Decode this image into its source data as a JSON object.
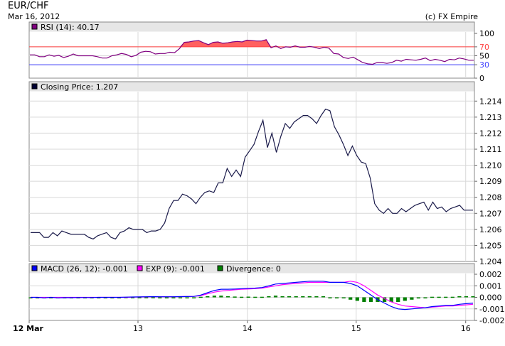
{
  "header": {
    "title": "EUR/CHF",
    "date": "Mar 16, 2012",
    "credit": "(c) FX Empire"
  },
  "colors": {
    "price_line": "#1a1a4a",
    "rsi_line": "#800080",
    "rsi_fill": "#ff6060",
    "rsi_overbought_line": "#ff4040",
    "rsi_oversold_line": "#4040ff",
    "macd_line": "#0000ff",
    "exp_line": "#ff00ff",
    "divergence_bar": "#008000",
    "panel_header": "#e6e6e6",
    "grid": "#d8d8d8"
  },
  "chart_data": [
    {
      "type": "line",
      "panel": "rsi",
      "legend": {
        "label": "RSI (14): 40.17",
        "swatch_color": "#800080"
      },
      "ylim": [
        0,
        100
      ],
      "y_ticks": [
        "100",
        "70",
        "50",
        "30",
        "0"
      ],
      "levels": {
        "overbought": 70,
        "oversold": 30
      },
      "series": [
        {
          "name": "RSI (14)",
          "values": [
            52,
            52,
            48,
            48,
            52,
            49,
            51,
            46,
            49,
            54,
            50,
            50,
            50,
            50,
            48,
            45,
            45,
            50,
            52,
            55,
            53,
            48,
            51,
            58,
            60,
            59,
            54,
            55,
            55,
            58,
            57,
            66,
            80,
            81,
            83,
            84,
            79,
            75,
            80,
            81,
            78,
            79,
            81,
            82,
            81,
            85,
            84,
            83,
            83,
            86,
            68,
            72,
            66,
            70,
            69,
            72,
            69,
            69,
            71,
            69,
            66,
            69,
            67,
            55,
            54,
            46,
            44,
            47,
            41,
            35,
            32,
            31,
            35,
            35,
            33,
            35,
            40,
            38,
            42,
            41,
            40,
            42,
            45,
            39,
            42,
            40,
            37,
            42,
            41,
            45,
            43,
            40,
            40
          ]
        }
      ]
    },
    {
      "type": "line",
      "panel": "price",
      "legend": {
        "label": "Closing Price: 1.207",
        "swatch_color": "#000033"
      },
      "ylim": [
        1.204,
        1.2145
      ],
      "y_ticks": [
        "1.214",
        "1.213",
        "1.212",
        "1.211",
        "1.210",
        "1.209",
        "1.208",
        "1.207",
        "1.206",
        "1.205",
        "1.204"
      ],
      "series": [
        {
          "name": "Closing Price",
          "values": [
            1.2058,
            1.2058,
            1.2058,
            1.2055,
            1.2055,
            1.2058,
            1.2056,
            1.2059,
            1.2058,
            1.2057,
            1.2057,
            1.2057,
            1.2057,
            1.2055,
            1.2054,
            1.2056,
            1.2057,
            1.2058,
            1.2055,
            1.2054,
            1.2058,
            1.2059,
            1.2061,
            1.206,
            1.206,
            1.206,
            1.2058,
            1.2059,
            1.2059,
            1.206,
            1.2064,
            1.2073,
            1.2078,
            1.2078,
            1.2082,
            1.2081,
            1.2079,
            1.2076,
            1.208,
            1.2083,
            1.2084,
            1.2083,
            1.2089,
            1.2089,
            1.2098,
            1.2093,
            1.2097,
            1.2093,
            1.2105,
            1.2109,
            1.2113,
            1.2121,
            1.2128,
            1.2111,
            1.212,
            1.2108,
            1.2118,
            1.2126,
            1.2123,
            1.2127,
            1.2129,
            1.2131,
            1.2131,
            1.2129,
            1.2126,
            1.2131,
            1.2135,
            1.2134,
            1.2124,
            1.2119,
            1.2113,
            1.2106,
            1.2112,
            1.2106,
            1.2102,
            1.2101,
            1.2092,
            1.2076,
            1.2072,
            1.207,
            1.2073,
            1.207,
            1.207,
            1.2073,
            1.2071,
            1.2073,
            1.2075,
            1.2076,
            1.2077,
            1.2072,
            1.2077,
            1.2073,
            1.2074,
            1.2071,
            1.2073,
            1.2074,
            1.2075,
            1.2072,
            1.2072,
            1.2072
          ]
        }
      ]
    },
    {
      "type": "line",
      "panel": "macd",
      "legend": [
        {
          "label": "MACD (26, 12): -0.001",
          "swatch_color": "#0000ff"
        },
        {
          "label": "EXP (9): -0.001",
          "swatch_color": "#ff00ff"
        },
        {
          "label": "Divergence: 0",
          "swatch_color": "#008000"
        }
      ],
      "ylim": [
        -0.002,
        0.002
      ],
      "y_ticks": [
        "0.002",
        "0.001",
        "0.000",
        "-0.001",
        "-0.002"
      ],
      "series": [
        {
          "name": "MACD (26, 12)",
          "values": [
            0.0,
            0.0,
            -5e-05,
            0.0,
            -5e-05,
            -3e-05,
            -3e-05,
            -2e-05,
            -2e-05,
            -2e-05,
            0.0,
            0.0,
            0.0,
            0.0,
            2e-05,
            3e-05,
            4e-05,
            5e-05,
            6e-05,
            5e-05,
            5e-05,
            5e-05,
            6e-05,
            7e-05,
            8e-05,
            0.0002,
            0.0004,
            0.0006,
            0.0007,
            0.0007,
            0.00072,
            0.00075,
            0.00078,
            0.0008,
            0.00085,
            0.001,
            0.00115,
            0.0012,
            0.00125,
            0.0013,
            0.00135,
            0.0014,
            0.0014,
            0.0014,
            0.0013,
            0.0013,
            0.0013,
            0.0012,
            0.001,
            0.0006,
            0.0002,
            -0.0002,
            -0.0005,
            -0.0008,
            -0.001,
            -0.00105,
            -0.001,
            -0.00095,
            -0.0009,
            -0.0008,
            -0.00075,
            -0.0007,
            -0.0007,
            -0.0006,
            -0.00055,
            -0.0005
          ]
        },
        {
          "name": "EXP (9)",
          "values": [
            0.0,
            0.0,
            0.0,
            0.0,
            0.0,
            0.0,
            0.0,
            0.0,
            0.0,
            0.0,
            0.0,
            0.0,
            0.0,
            0.0,
            0.0,
            2e-05,
            3e-05,
            4e-05,
            5e-05,
            5e-05,
            5e-05,
            5e-05,
            6e-05,
            7e-05,
            8e-05,
            0.00015,
            0.0003,
            0.00045,
            0.00055,
            0.0006,
            0.00065,
            0.0007,
            0.00072,
            0.00075,
            0.0008,
            0.0009,
            0.001,
            0.0011,
            0.00115,
            0.0012,
            0.00125,
            0.0013,
            0.0013,
            0.0013,
            0.0013,
            0.0013,
            0.0013,
            0.0014,
            0.0013,
            0.001,
            0.0006,
            0.0002,
            -0.0001,
            -0.0004,
            -0.0006,
            -0.00075,
            -0.0008,
            -0.00085,
            -0.0009,
            -0.00085,
            -0.0008,
            -0.00075,
            -0.00075,
            -0.0007,
            -0.00065,
            -0.0006
          ]
        },
        {
          "name": "Divergence",
          "type": "bar",
          "values": [
            0.0,
            0.0,
            -5e-05,
            0.0,
            -5e-05,
            -3e-05,
            -3e-05,
            -2e-05,
            -2e-05,
            -2e-05,
            0.0,
            0.0,
            0.0,
            0.0,
            2e-05,
            1e-05,
            1e-05,
            1e-05,
            1e-05,
            0.0,
            0.0,
            0.0,
            0.0,
            0.0,
            0.0,
            5e-05,
            0.0001,
            0.00015,
            0.00015,
            0.0001,
            7e-05,
            5e-05,
            6e-05,
            5e-05,
            5e-05,
            0.0001,
            0.00015,
            0.0001,
            0.0001,
            0.0001,
            0.0001,
            0.0001,
            0.0001,
            0.0001,
            0.0,
            0.0,
            0.0,
            -0.0002,
            -0.0003,
            -0.0004,
            -0.0004,
            -0.0004,
            -0.0004,
            -0.0004,
            -0.0004,
            -0.0003,
            -0.0002,
            -0.0001,
            0.0,
            5e-05,
            5e-05,
            5e-05,
            5e-05,
            0.0001,
            0.0001,
            0.0001
          ]
        }
      ]
    }
  ],
  "x_axis": {
    "ticks": [
      {
        "label": "12 Mar",
        "pos": 0.0,
        "bold": true
      },
      {
        "label": "13",
        "pos": 0.2444
      },
      {
        "label": "14",
        "pos": 0.4902
      },
      {
        "label": "15",
        "pos": 0.7345
      },
      {
        "label": "16",
        "pos": 0.9804
      }
    ]
  }
}
